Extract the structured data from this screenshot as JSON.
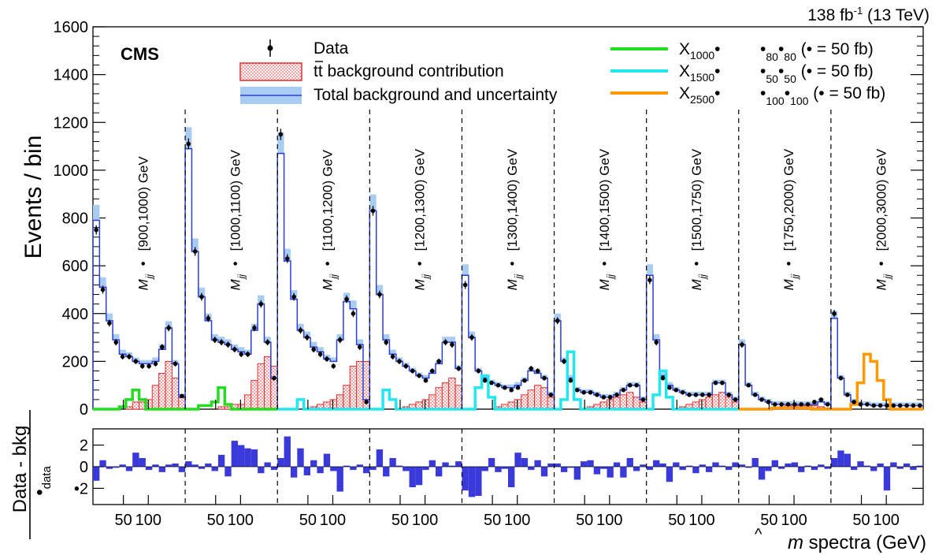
{
  "chart_data": {
    "type": "bar",
    "header": {
      "lumi_value": "138 fb",
      "lumi_sup": "-1",
      "energy": " (13 TeV)"
    },
    "experiment": "CMS",
    "top_panel": {
      "ylabel": "Events / bin",
      "ylim": [
        0,
        1600
      ],
      "yticks": [
        0,
        200,
        400,
        600,
        800,
        1000,
        1200,
        1400,
        1600
      ],
      "legend_left": [
        {
          "label": "Data",
          "style": "marker",
          "color": "#000000"
        },
        {
          "label": "tt background contribution",
          "style": "hatched",
          "color": "#e03030",
          "overline_chars": 2
        },
        {
          "label": "Total background and uncertainty",
          "style": "band",
          "color": "#2b3fd6",
          "band_color": "#a9ccf2"
        }
      ],
      "legend_right": [
        {
          "base": "X",
          "sub": "1000",
          "tail": "•",
          "sub2": "80",
          "sub3": "80",
          "suffix": "(• = 50 fb)",
          "color": "#22dd22"
        },
        {
          "base": "X",
          "sub": "1500",
          "tail": "•",
          "sub2": "50",
          "sub3": "50",
          "suffix": "(• = 50 fb)",
          "color": "#22e8ee"
        },
        {
          "base": "X",
          "sub": "2500",
          "tail": "•",
          "sub2": "100",
          "sub3": "100",
          "suffix": "(• = 50 fb)",
          "color": "#ff9900"
        }
      ],
      "slice_label_prefix": "M",
      "slice_label_sub": "jj",
      "slice_label_mid": "•",
      "slices": [
        {
          "label": "[900,1000) GeV",
          "bkg": [
            790,
            510,
            370,
            290,
            230,
            220,
            200,
            190,
            190,
            200,
            250,
            340,
            190,
            50
          ],
          "ttbar": [
            0,
            0,
            0,
            0,
            0,
            10,
            30,
            30,
            40,
            100,
            150,
            200,
            130,
            60
          ],
          "data": [
            750,
            500,
            360,
            280,
            220,
            220,
            200,
            180,
            180,
            190,
            260,
            340,
            190,
            55
          ],
          "signal": {
            "color": "#22dd22",
            "values": [
              0,
              0,
              0,
              0,
              10,
              40,
              80,
              40,
              0,
              0,
              0,
              0,
              0,
              0
            ]
          }
        },
        {
          "label": "[1000,1100) GeV",
          "bkg": [
            1090,
            660,
            470,
            370,
            290,
            280,
            270,
            250,
            240,
            230,
            330,
            440,
            280,
            130
          ],
          "ttbar": [
            0,
            0,
            0,
            0,
            0,
            10,
            10,
            20,
            20,
            60,
            120,
            190,
            220,
            180
          ],
          "data": [
            1110,
            660,
            470,
            380,
            290,
            280,
            270,
            250,
            230,
            230,
            340,
            440,
            280,
            130
          ],
          "signal": {
            "color": "#22dd22",
            "values": [
              0,
              0,
              15,
              15,
              30,
              90,
              20,
              0,
              0,
              0,
              0,
              0,
              0,
              0
            ]
          }
        },
        {
          "label": "[1100,1200) GeV",
          "bkg": [
            1070,
            620,
            460,
            330,
            300,
            260,
            240,
            210,
            200,
            290,
            450,
            420,
            270,
            40
          ],
          "ttbar": [
            0,
            0,
            0,
            0,
            0,
            10,
            20,
            30,
            40,
            60,
            100,
            180,
            200,
            200
          ],
          "data": [
            1150,
            630,
            470,
            330,
            300,
            250,
            230,
            210,
            180,
            290,
            460,
            400,
            260,
            30
          ],
          "signal": {
            "color": "#22e8ee",
            "values": [
              0,
              0,
              0,
              40,
              0,
              0,
              0,
              0,
              0,
              0,
              0,
              0,
              0,
              0
            ]
          }
        },
        {
          "label": "[1200,1300) GeV",
          "bkg": [
            830,
            480,
            290,
            230,
            200,
            180,
            160,
            140,
            130,
            150,
            190,
            280,
            280,
            170
          ],
          "ttbar": [
            0,
            0,
            0,
            0,
            0,
            10,
            20,
            30,
            40,
            60,
            90,
            110,
            130,
            100
          ],
          "data": [
            830,
            480,
            280,
            220,
            200,
            180,
            160,
            140,
            120,
            160,
            200,
            280,
            270,
            170
          ],
          "signal": {
            "color": "#22e8ee",
            "values": [
              0,
              0,
              80,
              40,
              0,
              0,
              0,
              0,
              0,
              0,
              0,
              0,
              0,
              0
            ]
          }
        },
        {
          "label": "[1300,1400) GeV",
          "bkg": [
            560,
            300,
            160,
            130,
            110,
            100,
            90,
            90,
            100,
            120,
            160,
            150,
            130,
            60
          ],
          "ttbar": [
            0,
            0,
            0,
            0,
            0,
            10,
            20,
            30,
            40,
            60,
            80,
            100,
            90,
            50
          ],
          "data": [
            520,
            300,
            160,
            120,
            110,
            100,
            90,
            80,
            90,
            120,
            170,
            160,
            130,
            60
          ],
          "signal": {
            "color": "#22e8ee",
            "values": [
              0,
              0,
              90,
              140,
              50,
              0,
              0,
              0,
              0,
              0,
              0,
              0,
              0,
              0
            ]
          }
        },
        {
          "label": "[1400,1500) GeV",
          "bkg": [
            370,
            200,
            130,
            80,
            70,
            70,
            60,
            50,
            50,
            60,
            80,
            100,
            100,
            40
          ],
          "ttbar": [
            0,
            0,
            0,
            0,
            0,
            10,
            20,
            30,
            40,
            50,
            60,
            70,
            50,
            30
          ],
          "data": [
            370,
            200,
            120,
            80,
            70,
            70,
            60,
            50,
            50,
            60,
            80,
            100,
            100,
            40
          ],
          "signal": {
            "color": "#22e8ee",
            "values": [
              0,
              40,
              240,
              40,
              0,
              0,
              0,
              0,
              0,
              0,
              0,
              0,
              0,
              0
            ]
          }
        },
        {
          "label": "[1500,1750) GeV",
          "bkg": [
            560,
            290,
            140,
            100,
            80,
            70,
            60,
            60,
            60,
            60,
            110,
            110,
            60,
            40
          ],
          "ttbar": [
            0,
            0,
            0,
            0,
            0,
            10,
            20,
            30,
            40,
            50,
            60,
            70,
            50,
            30
          ],
          "data": [
            540,
            280,
            130,
            90,
            80,
            70,
            60,
            60,
            60,
            60,
            110,
            110,
            60,
            40
          ],
          "signal": {
            "color": "#22e8ee",
            "values": [
              0,
              60,
              160,
              50,
              0,
              0,
              0,
              0,
              0,
              0,
              0,
              0,
              0,
              0
            ]
          }
        },
        {
          "label": "[1750,2000) GeV",
          "bkg": [
            270,
            100,
            60,
            40,
            30,
            20,
            20,
            20,
            20,
            20,
            20,
            20,
            30,
            20
          ],
          "ttbar": [
            0,
            0,
            0,
            0,
            0,
            5,
            10,
            15,
            15,
            15,
            15,
            15,
            10,
            5
          ],
          "data": [
            270,
            100,
            60,
            40,
            30,
            20,
            20,
            20,
            20,
            20,
            20,
            30,
            40,
            20
          ],
          "signal": {
            "color": "#ff9900",
            "values": [
              0,
              0,
              0,
              0,
              0,
              5,
              5,
              5,
              5,
              5,
              5,
              0,
              0,
              0
            ]
          }
        },
        {
          "label": "[2000,3000) GeV",
          "bkg": [
            380,
            130,
            60,
            30,
            20,
            20,
            15,
            15,
            15,
            15,
            15,
            15,
            15,
            15
          ],
          "ttbar": [
            0,
            0,
            0,
            0,
            0,
            0,
            0,
            0,
            0,
            0,
            0,
            0,
            0,
            0
          ],
          "data": [
            400,
            130,
            60,
            30,
            20,
            20,
            15,
            15,
            15,
            15,
            15,
            15,
            15,
            15
          ],
          "signal": {
            "color": "#ff9900",
            "values": [
              0,
              0,
              0,
              20,
              110,
              230,
              200,
              120,
              40,
              0,
              0,
              0,
              0,
              0
            ]
          }
        }
      ]
    },
    "bottom_panel": {
      "ylabel_num": "Data - bkg",
      "ylabel_den": "•",
      "ylabel_den_sub": "data",
      "ylim": [
        -3.5,
        3.5
      ],
      "yticks": [
        "2",
        "0",
        "•2"
      ],
      "pulls": [
        [
          -1.3,
          0.6,
          -0.2,
          -0.1,
          0.2,
          -0.4,
          1.3,
          0.8,
          -0.3,
          0.2,
          -0.5,
          0.2,
          0.3,
          -0.5,
          0.5,
          0.2,
          -0.2,
          0.3,
          -0.4,
          1.1,
          -0.9,
          2.4,
          2.0,
          1.7,
          1.6,
          -0.6,
          0.4,
          -0.3,
          0.8,
          2.8,
          -1.0,
          1.7,
          -0.8,
          0.6,
          -0.6,
          1.2,
          -0.4,
          -2.3,
          0.1,
          -0.3,
          0.2,
          -0.6,
          -0.3,
          1.6,
          -0.9,
          0.8,
          0.1,
          -0.4,
          -1.9,
          -1.7,
          -0.3,
          0.6,
          -0.9,
          0.4,
          0.1,
          0.5,
          -2.2,
          -2.8,
          -2.7,
          -0.4,
          0.8,
          -0.5,
          -0.2,
          -1.9,
          1.3,
          0.8,
          -0.3,
          0.6,
          -0.9,
          0.3,
          0.3,
          -0.5,
          -0.1,
          -1.2,
          0.5,
          0.6,
          -0.7,
          -0.2,
          -1.0,
          0.4,
          -1.0,
          0.8,
          -0.4,
          0.2,
          -0.3,
          0.6,
          0.3,
          -1.4,
          0.4,
          -0.3,
          0.1,
          -0.6,
          0.2,
          -0.5,
          0.4,
          0.1,
          -0.3,
          0.4,
          0.2,
          -0.1,
          0.8,
          -1.2,
          -0.4,
          0.6,
          -0.2,
          0.3,
          0.4,
          -0.5,
          0.1,
          -0.3,
          0.2,
          -0.2,
          0.8,
          1.5,
          1.2,
          -0.3,
          0.5,
          0.1,
          -0.4,
          0.3,
          -2.2,
          0.4,
          -0.2,
          0.3,
          -0.3,
          0.1
        ]
      ],
      "fill_color": "#3a3adb"
    },
    "xaxis": {
      "tick_labels": [
        "50",
        "100"
      ],
      "xlabel_hat": "m",
      "xlabel_rest": " spectra (GeV)"
    }
  }
}
